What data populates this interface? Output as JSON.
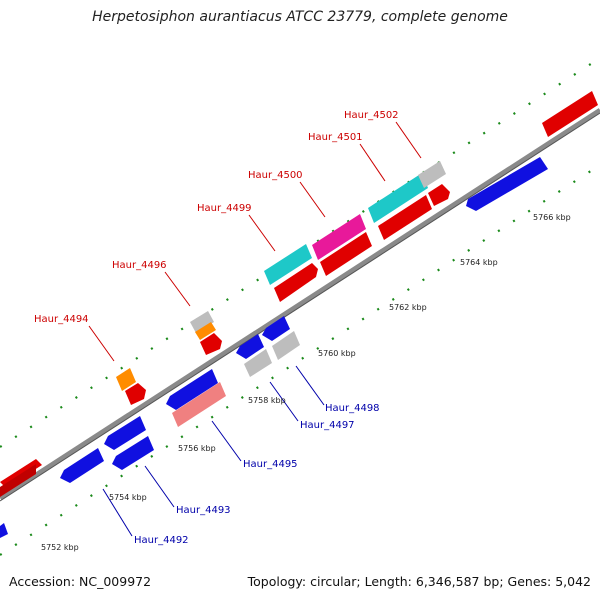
{
  "title": "Herpetosiphon aurantiacus ATCC 23779, complete genome",
  "footer": {
    "accession": "Accession: NC_009972",
    "summary": "Topology: circular; Length: 6,346,587 bp; Genes: 5,042"
  },
  "colors": {
    "backbone": "#777777",
    "tick": "#1b8a1b",
    "label_top": "#cc0000",
    "label_bottom": "#0000aa"
  },
  "scale_labels": [
    "5752 kbp",
    "5754 kbp",
    "5756 kbp",
    "5758 kbp",
    "5760 kbp",
    "5762 kbp",
    "5764 kbp",
    "5766 kbp"
  ],
  "gene_labels": {
    "top": [
      "Haur_4494",
      "Haur_4496",
      "Haur_4499",
      "Haur_4500",
      "Haur_4501",
      "Haur_4502"
    ],
    "bottom": [
      "Haur_4492",
      "Haur_4493",
      "Haur_4495",
      "Haur_4497",
      "Haur_4498"
    ]
  }
}
